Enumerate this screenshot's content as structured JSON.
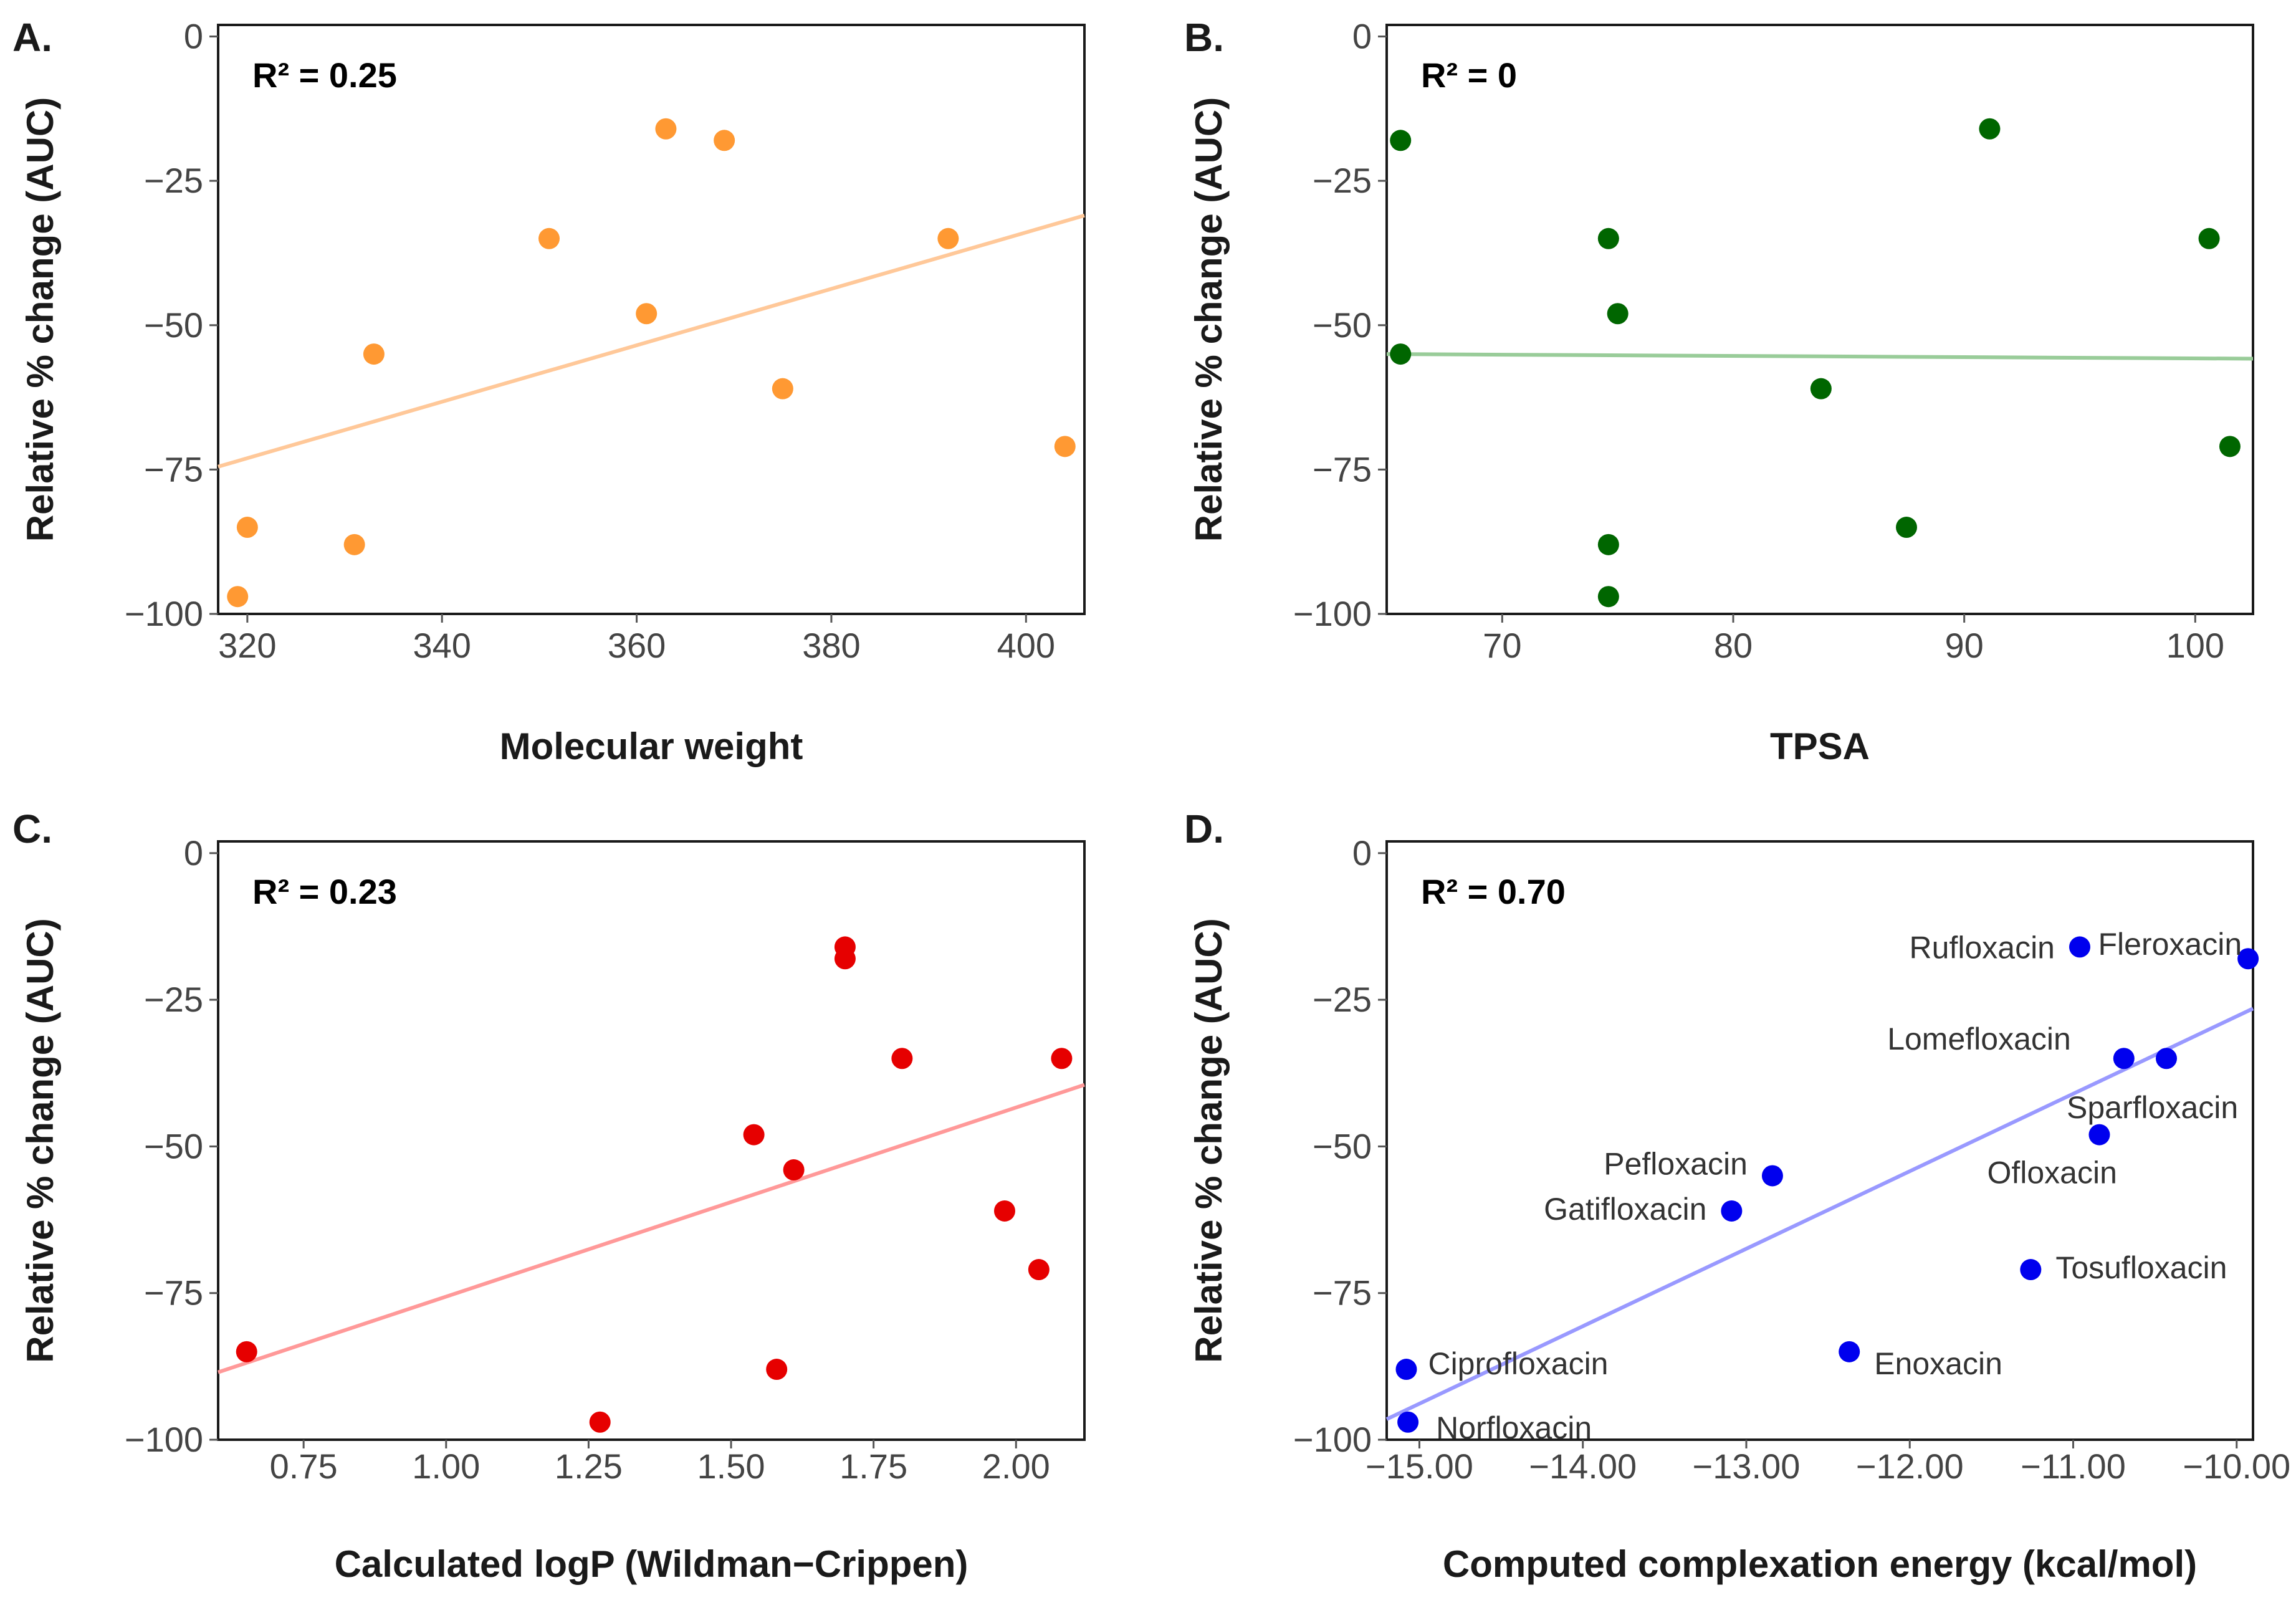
{
  "chart_data": [
    {
      "type": "scatter",
      "panel": "A.",
      "r2_label": "R² = 0.25",
      "xlabel": "Molecular weight",
      "ylabel": "Relative % change (AUC)",
      "xlim": [
        317,
        406
      ],
      "ylim": [
        -100,
        2
      ],
      "x_ticks": [
        320,
        340,
        360,
        380,
        400
      ],
      "x_tick_labels": [
        "320",
        "340",
        "360",
        "380",
        "400"
      ],
      "y_ticks": [
        0,
        -25,
        -50,
        -75,
        -100
      ],
      "y_tick_labels": [
        "0",
        "−25",
        "−50",
        "−75",
        "−100"
      ],
      "color": "#ff9933",
      "fit_color": "#ffc899",
      "fit_line": {
        "x": [
          317,
          406
        ],
        "y": [
          -74.5,
          -31
        ]
      },
      "points": [
        {
          "x": 319,
          "y": -97
        },
        {
          "x": 320,
          "y": -85
        },
        {
          "x": 331,
          "y": -88
        },
        {
          "x": 333,
          "y": -55
        },
        {
          "x": 351,
          "y": -35
        },
        {
          "x": 361,
          "y": -48
        },
        {
          "x": 363,
          "y": -16
        },
        {
          "x": 369,
          "y": -18
        },
        {
          "x": 375,
          "y": -61
        },
        {
          "x": 392,
          "y": -35
        },
        {
          "x": 404,
          "y": -71
        }
      ]
    },
    {
      "type": "scatter",
      "panel": "B.",
      "r2_label": "R² = 0",
      "xlabel": "TPSA",
      "ylabel": "Relative % change (AUC)",
      "xlim": [
        65,
        102.5
      ],
      "ylim": [
        -100,
        2
      ],
      "x_ticks": [
        70,
        80,
        90,
        100
      ],
      "x_tick_labels": [
        "70",
        "80",
        "90",
        "100"
      ],
      "y_ticks": [
        0,
        -25,
        -50,
        -75,
        -100
      ],
      "y_tick_labels": [
        "0",
        "−25",
        "−50",
        "−75",
        "−100"
      ],
      "color": "#006600",
      "fit_color": "#99cc99",
      "fit_line": {
        "x": [
          65,
          102.5
        ],
        "y": [
          -55,
          -55.8
        ]
      },
      "points": [
        {
          "x": 65.6,
          "y": -18
        },
        {
          "x": 65.6,
          "y": -55
        },
        {
          "x": 74.6,
          "y": -35
        },
        {
          "x": 75,
          "y": -48
        },
        {
          "x": 74.6,
          "y": -88
        },
        {
          "x": 74.6,
          "y": -97
        },
        {
          "x": 83.8,
          "y": -61
        },
        {
          "x": 87.5,
          "y": -85
        },
        {
          "x": 91.1,
          "y": -16
        },
        {
          "x": 100.6,
          "y": -35
        },
        {
          "x": 101.5,
          "y": -71
        }
      ]
    },
    {
      "type": "scatter",
      "panel": "C.",
      "r2_label": "R² = 0.23",
      "xlabel": "Calculated logP (Wildman−Crippen)",
      "ylabel": "Relative % change (AUC)",
      "xlim": [
        0.6,
        2.12
      ],
      "ylim": [
        -100,
        2
      ],
      "x_ticks": [
        0.75,
        1.0,
        1.25,
        1.5,
        1.75,
        2.0
      ],
      "x_tick_labels": [
        "0.75",
        "1.00",
        "1.25",
        "1.50",
        "1.75",
        "2.00"
      ],
      "y_ticks": [
        0,
        -25,
        -50,
        -75,
        -100
      ],
      "y_tick_labels": [
        "0",
        "−25",
        "−50",
        "−75",
        "−100"
      ],
      "color": "#e60000",
      "fit_color": "#ff9999",
      "fit_line": {
        "x": [
          0.6,
          2.12
        ],
        "y": [
          -88.5,
          -39.5
        ]
      },
      "points": [
        {
          "x": 0.65,
          "y": -85
        },
        {
          "x": 1.27,
          "y": -97
        },
        {
          "x": 1.54,
          "y": -48
        },
        {
          "x": 1.58,
          "y": -88
        },
        {
          "x": 1.61,
          "y": -54
        },
        {
          "x": 1.7,
          "y": -16
        },
        {
          "x": 1.7,
          "y": -18
        },
        {
          "x": 1.8,
          "y": -35
        },
        {
          "x": 1.98,
          "y": -61
        },
        {
          "x": 2.04,
          "y": -71
        },
        {
          "x": 2.08,
          "y": -35
        }
      ]
    },
    {
      "type": "scatter",
      "panel": "D.",
      "r2_label": "R² = 0.70",
      "xlabel": "Computed complexation energy (kcal/mol)",
      "ylabel": "Relative % change (AUC)",
      "xlim": [
        -15.2,
        -9.9
      ],
      "ylim": [
        -100,
        2
      ],
      "x_ticks": [
        -15,
        -14,
        -13,
        -12,
        -11,
        -10
      ],
      "x_tick_labels": [
        "−15.00",
        "−14.00",
        "−13.00",
        "−12.00",
        "−11.00",
        "−10.00"
      ],
      "y_ticks": [
        0,
        -25,
        -50,
        -75,
        -100
      ],
      "y_tick_labels": [
        "0",
        "−25",
        "−50",
        "−75",
        "−100"
      ],
      "color": "#0000ee",
      "fit_color": "#9999ff",
      "fit_line": {
        "x": [
          -15.2,
          -9.9
        ],
        "y": [
          -96.5,
          -26.5
        ]
      },
      "points": [
        {
          "x": -15.08,
          "y": -88,
          "label": "Ciprofloxacin"
        },
        {
          "x": -15.07,
          "y": -97,
          "label": "Norfloxacin"
        },
        {
          "x": -13.09,
          "y": -61,
          "label": "Gatifloxacin"
        },
        {
          "x": -12.84,
          "y": -55,
          "label": "Pefloxacin"
        },
        {
          "x": -12.37,
          "y": -85,
          "label": "Enoxacin"
        },
        {
          "x": -11.26,
          "y": -71,
          "label": "Tosufloxacin"
        },
        {
          "x": -10.96,
          "y": -16,
          "label": "Rufloxacin"
        },
        {
          "x": -10.84,
          "y": -48,
          "label": "Ofloxacin"
        },
        {
          "x": -10.69,
          "y": -35,
          "label": "Lomefloxacin"
        },
        {
          "x": -10.43,
          "y": -35,
          "label": "Sparfloxacin"
        },
        {
          "x": -9.93,
          "y": -18,
          "label": "Fleroxacin"
        }
      ]
    }
  ]
}
